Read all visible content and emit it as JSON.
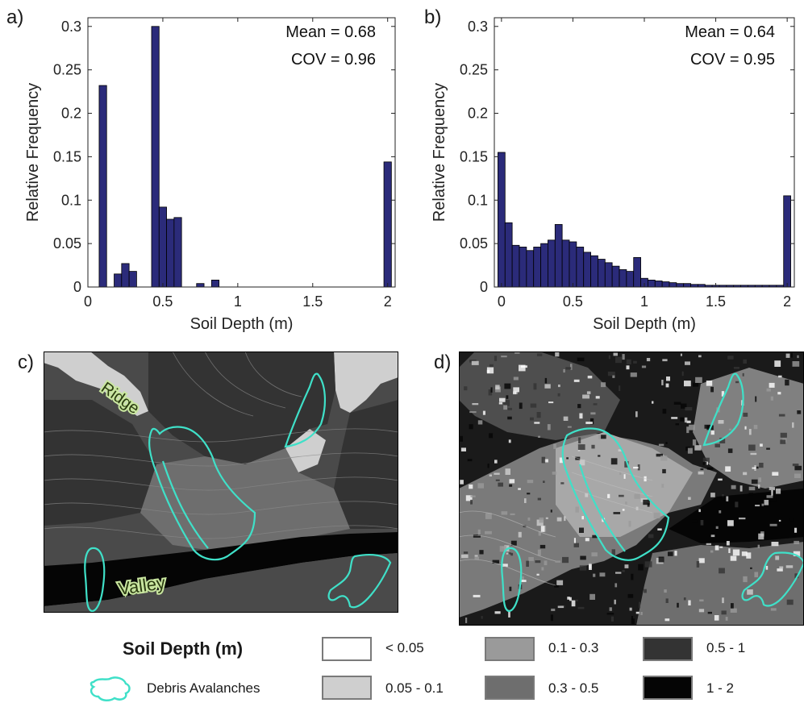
{
  "panels": {
    "a": "a)",
    "b": "b)",
    "c": "c)",
    "d": "d)"
  },
  "chart_data": [
    {
      "type": "bar",
      "panel": "a)",
      "xlabel": "Soil Depth (m)",
      "ylabel": "Relative Frequency",
      "xlim": [
        0,
        2.05
      ],
      "ylim": [
        0,
        0.31
      ],
      "xticks": [
        "0",
        "0.5",
        "1",
        "1.5",
        "2"
      ],
      "yticks": [
        "0",
        "0.05",
        "0.1",
        "0.15",
        "0.2",
        "0.25",
        "0.3"
      ],
      "bin_width": 0.05,
      "bar_color": "#2b2b7a",
      "annotations": [
        "Mean = 0.68",
        "COV = 0.96"
      ],
      "x": [
        0.1,
        0.15,
        0.2,
        0.25,
        0.3,
        0.35,
        0.4,
        0.45,
        0.5,
        0.55,
        0.6,
        0.65,
        0.7,
        0.75,
        0.8,
        0.85,
        0.9,
        1.95,
        2.0
      ],
      "values": [
        0.232,
        0,
        0.015,
        0.027,
        0.018,
        0,
        0,
        0.3,
        0.092,
        0.078,
        0.08,
        0,
        0,
        0.004,
        0,
        0.008,
        0,
        0,
        0.144
      ]
    },
    {
      "type": "bar",
      "panel": "b)",
      "xlabel": "Soil Depth (m)",
      "ylabel": "Relative Frequency",
      "xlim": [
        -0.05,
        2.05
      ],
      "ylim": [
        0,
        0.31
      ],
      "xticks": [
        "0",
        "0.5",
        "1",
        "1.5",
        "2"
      ],
      "yticks": [
        "0",
        "0.05",
        "0.1",
        "0.15",
        "0.2",
        "0.25",
        "0.3"
      ],
      "bin_width": 0.05,
      "bar_color": "#2b2b7a",
      "annotations": [
        "Mean = 0.64",
        "COV = 0.95"
      ],
      "x": [
        0.0,
        0.05,
        0.1,
        0.15,
        0.2,
        0.25,
        0.3,
        0.35,
        0.4,
        0.45,
        0.5,
        0.55,
        0.6,
        0.65,
        0.7,
        0.75,
        0.8,
        0.85,
        0.9,
        0.95,
        1.0,
        1.05,
        1.1,
        1.15,
        1.2,
        1.25,
        1.3,
        1.35,
        1.4,
        1.45,
        1.5,
        1.55,
        1.6,
        1.65,
        1.7,
        1.75,
        1.8,
        1.85,
        1.9,
        1.95,
        2.0
      ],
      "values": [
        0.155,
        0.074,
        0.048,
        0.046,
        0.042,
        0.046,
        0.05,
        0.054,
        0.072,
        0.054,
        0.052,
        0.046,
        0.04,
        0.036,
        0.032,
        0.028,
        0.024,
        0.02,
        0.018,
        0.034,
        0.01,
        0.008,
        0.007,
        0.006,
        0.005,
        0.004,
        0.004,
        0.003,
        0.003,
        0.002,
        0.002,
        0.002,
        0.002,
        0.002,
        0.002,
        0.002,
        0.002,
        0.002,
        0.002,
        0.002,
        0.105
      ]
    }
  ],
  "maps": {
    "c": {
      "labels": [
        "Ridge",
        "Valley"
      ]
    },
    "d": {
      "labels": []
    }
  },
  "legend": {
    "title": "Soil Depth (m)",
    "debris_label": "Debris Avalanches",
    "debris_color": "#3fe0c8",
    "classes": [
      {
        "label": "< 0.05",
        "color": "#ffffff"
      },
      {
        "label": "0.05 - 0.1",
        "color": "#cfcfcf"
      },
      {
        "label": "0.1 - 0.3",
        "color": "#9a9a9a"
      },
      {
        "label": "0.3 - 0.5",
        "color": "#6e6e6e"
      },
      {
        "label": "0.5 - 1",
        "color": "#333333"
      },
      {
        "label": "1 - 2",
        "color": "#050505"
      }
    ]
  }
}
